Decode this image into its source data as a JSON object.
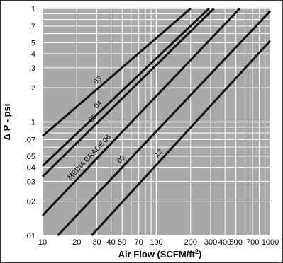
{
  "chart_data": {
    "type": "line",
    "title": "",
    "xlabel": "Air Flow (SCFM/ft",
    "xlabel_sup": "2",
    "xlabel_end": ")",
    "ylabel": "Δ P - psi",
    "xscale": "log",
    "yscale": "log",
    "xlim": [
      10,
      1000
    ],
    "ylim": [
      0.01,
      1
    ],
    "grid": true,
    "x_ticks": [
      10,
      20,
      30,
      40,
      50,
      70,
      100,
      200,
      300,
      400,
      500,
      700,
      1000
    ],
    "x_tick_labels": [
      "10",
      "20",
      "30",
      "40",
      "50",
      "70",
      "100",
      "200",
      "300",
      "400",
      "500",
      "700",
      "1000"
    ],
    "y_ticks": [
      0.01,
      0.02,
      0.03,
      0.04,
      0.05,
      0.07,
      0.1,
      0.2,
      0.3,
      0.4,
      0.5,
      0.7,
      1
    ],
    "y_tick_labels": [
      ".01",
      ".02",
      ".03",
      ".04",
      ".05",
      ".07",
      ".1",
      ".2",
      ".3",
      ".4",
      ".5",
      ".7",
      "1"
    ],
    "series": [
      {
        "name": "03",
        "label": "03",
        "label_at": 0.4,
        "x": [
          10,
          200
        ],
        "y": [
          0.075,
          1.0
        ]
      },
      {
        "name": "04",
        "label": "04",
        "label_at": 0.36,
        "x": [
          10,
          290
        ],
        "y": [
          0.041,
          1.0
        ]
      },
      {
        "name": "05",
        "label": "05",
        "label_at": 0.32,
        "x": [
          10,
          320
        ],
        "y": [
          0.033,
          1.0
        ]
      },
      {
        "name": "06",
        "label": "MEDIA GRADE 06",
        "label_at": 0.26,
        "x": [
          10,
          540
        ],
        "y": [
          0.015,
          1.0
        ]
      },
      {
        "name": "09",
        "label": "09",
        "label_at": 0.32,
        "x": [
          13.6,
          1000
        ],
        "y": [
          0.01,
          0.95
        ]
      },
      {
        "name": "12",
        "label": "12",
        "label_at": 0.4,
        "x": [
          27,
          1000
        ],
        "y": [
          0.01,
          0.52
        ]
      }
    ]
  }
}
